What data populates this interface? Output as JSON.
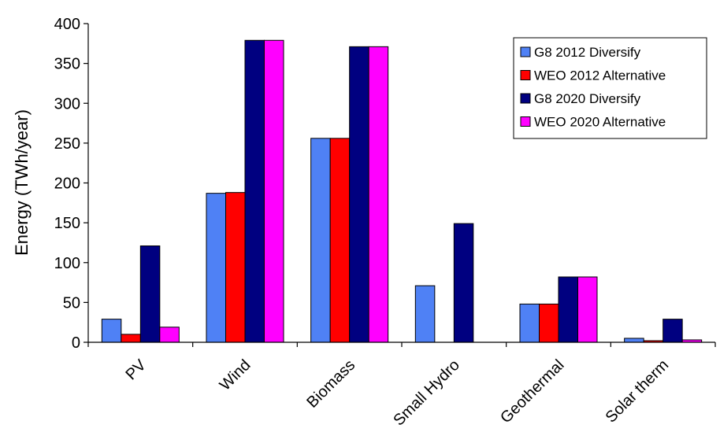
{
  "chart_data": {
    "type": "bar",
    "ylabel": "Energy (TWh/year)",
    "ylim": [
      0,
      400
    ],
    "yticks": [
      0,
      50,
      100,
      150,
      200,
      250,
      300,
      350,
      400
    ],
    "grid": false,
    "legend_position": "top-right",
    "categories": [
      "PV",
      "Wind",
      "Biomass",
      "Small Hydro",
      "Geothermal",
      "Solar therm"
    ],
    "series": [
      {
        "name": "G8 2012 Diversify",
        "color": "#4f81f5",
        "values": [
          29,
          187,
          256,
          71,
          48,
          5
        ]
      },
      {
        "name": "WEO 2012 Alternative",
        "color": "#ff0000",
        "values": [
          10,
          188,
          256,
          0,
          48,
          2
        ]
      },
      {
        "name": "G8 2020 Diversify",
        "color": "#000080",
        "values": [
          121,
          379,
          371,
          149,
          82,
          29
        ]
      },
      {
        "name": "WEO 2020 Alternative",
        "color": "#ff00ff",
        "values": [
          19,
          379,
          371,
          0,
          82,
          3
        ]
      }
    ]
  }
}
